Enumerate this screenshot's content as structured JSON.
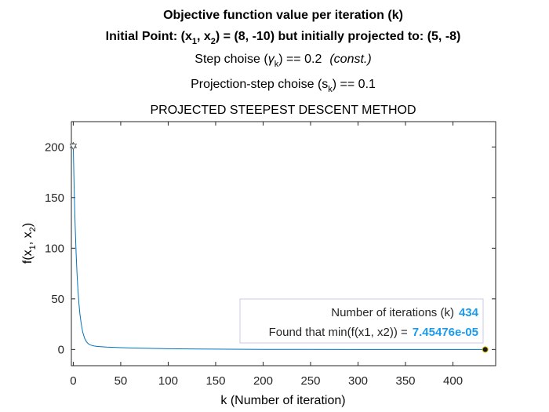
{
  "chart_data": {
    "type": "line",
    "title_line1": "Objective function value per iteration (k)",
    "title_line2": {
      "prefix": "Initial Point: (x",
      "sub1": "1",
      "mid": ", x",
      "sub2": "2",
      "suffix": ") = (8, -10) but initially projected to: (5, -8)"
    },
    "title_line3": {
      "prefix": "Step choise (",
      "symbol": "γ",
      "sub": "k",
      "suffix": ") == 0.2",
      "note": "(const.)"
    },
    "title_line4": {
      "prefix": "Projection-step choise (s",
      "sub": "k",
      "suffix": ") == 0.1"
    },
    "title_line5": "PROJECTED STEEPEST DESCENT METHOD",
    "xlabel": "k (Number of iteration)",
    "ylabel": {
      "prefix": "f(x",
      "sub1": "1",
      "mid": ", x",
      "sub2": "2",
      "suffix": ")"
    },
    "xlim": [
      -2,
      445
    ],
    "ylim": [
      -16,
      225
    ],
    "xticks": [
      0,
      50,
      100,
      150,
      200,
      250,
      300,
      350,
      400
    ],
    "yticks": [
      0,
      50,
      100,
      150,
      200
    ],
    "grid": false,
    "series": [
      {
        "color": "#0072bd",
        "x": [
          0,
          1,
          2,
          3,
          4,
          5,
          6,
          7,
          8,
          9,
          10,
          12,
          14,
          16,
          18,
          20,
          22,
          25,
          30,
          35,
          40,
          50,
          60,
          80,
          100,
          150,
          200,
          300,
          400,
          434
        ],
        "y": [
          201,
          156,
          122,
          95,
          74,
          58,
          45,
          35,
          28,
          22,
          17,
          11,
          7.5,
          5.6,
          4.5,
          3.9,
          3.5,
          3.1,
          2.7,
          2.4,
          2.2,
          1.8,
          1.5,
          1.1,
          0.8,
          0.35,
          0.12,
          0.01,
          0.001,
          7.45e-05
        ]
      }
    ],
    "start_marker": {
      "x": 0,
      "y": 201,
      "shape": "hexagram"
    },
    "end_marker": {
      "x": 434,
      "y": 7.45e-05,
      "shape": "circle"
    },
    "annotation": {
      "line1_label": "Number of iterations (k)",
      "line1_value": "434",
      "line2_label": "Found that min(f(x1, x2)) =",
      "line2_value": "7.45476e-05",
      "location": "bottom-right"
    }
  }
}
